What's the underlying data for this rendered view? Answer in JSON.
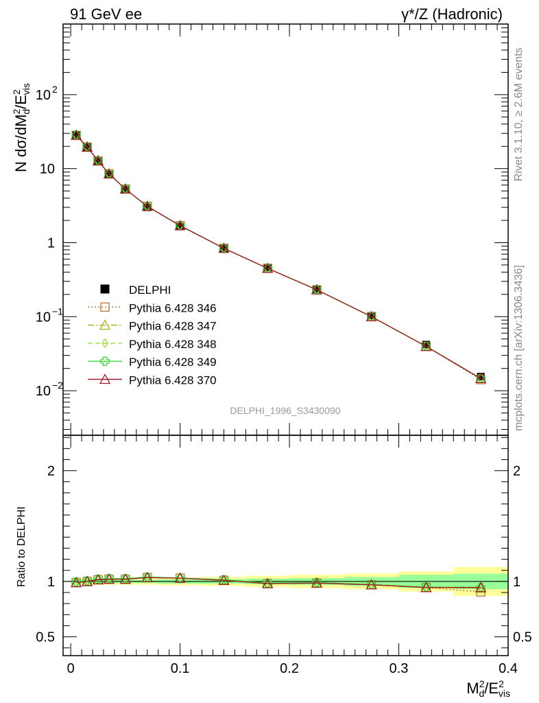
{
  "header": {
    "left": "91 GeV ee",
    "right": "γ*/Z (Hadronic)"
  },
  "side_text": {
    "rivet": "Rivet 3.1.10, ≥ 2.6M events",
    "mcplots": "mcplots.cern.ch [arXiv:1306.3436]"
  },
  "watermark": "DELPHI_1996_S3430090",
  "chart_data": [
    {
      "type": "line",
      "panel": "main",
      "yscale": "log",
      "ylim": [
        0.0025,
        900
      ],
      "xlim": [
        -0.007,
        0.4
      ],
      "ylabel": "N dσ/dM²_d/E²_vis",
      "yticks": [
        {
          "value": 0.01,
          "base": "10",
          "exp": "−2"
        },
        {
          "value": 0.1,
          "base": "10",
          "exp": "−1"
        },
        {
          "value": 1,
          "base": "1",
          "exp": ""
        },
        {
          "value": 10,
          "base": "10",
          "exp": ""
        },
        {
          "value": 100,
          "base": "10",
          "exp": "2"
        }
      ],
      "x": [
        0.005,
        0.015,
        0.025,
        0.035,
        0.05,
        0.07,
        0.1,
        0.14,
        0.18,
        0.225,
        0.275,
        0.325,
        0.375
      ],
      "data": {
        "name": "DELPHI",
        "values": [
          28.5,
          19.5,
          12.5,
          8.3,
          5.2,
          3.0,
          1.65,
          0.83,
          0.46,
          0.235,
          0.103,
          0.042,
          0.0155
        ]
      },
      "legend_placement": "lower-left",
      "series": [
        {
          "name": "Pythia 6.428 346",
          "color": "#b8753a",
          "marker": "square",
          "dash": "2,3",
          "values": [
            28.2,
            19.6,
            12.7,
            8.5,
            5.3,
            3.1,
            1.7,
            0.84,
            0.45,
            0.231,
            0.1,
            0.0397,
            0.0141
          ]
        },
        {
          "name": "Pythia 6.428 347",
          "color": "#a2b21c",
          "marker": "triangle",
          "dash": "9,3,2,3",
          "values": [
            28.3,
            19.6,
            12.8,
            8.5,
            5.3,
            3.1,
            1.7,
            0.84,
            0.45,
            0.231,
            0.1,
            0.0397,
            0.0146
          ]
        },
        {
          "name": "Pythia 6.428 348",
          "color": "#96e03a",
          "marker": "diamond",
          "dash": "7,4",
          "values": [
            28.4,
            19.7,
            12.8,
            8.5,
            5.3,
            3.1,
            1.7,
            0.84,
            0.45,
            0.232,
            0.1,
            0.0399,
            0.0147
          ]
        },
        {
          "name": "Pythia 6.428 349",
          "color": "#33dd33",
          "marker": "cross",
          "dash": "",
          "values": [
            28.4,
            19.7,
            12.8,
            8.5,
            5.3,
            3.1,
            1.7,
            0.84,
            0.45,
            0.232,
            0.1,
            0.0398,
            0.0146
          ]
        },
        {
          "name": "Pythia 6.428 370",
          "color": "#a01c2a",
          "marker": "triangle",
          "dash": "",
          "values": [
            28.3,
            19.6,
            12.8,
            8.5,
            5.3,
            3.1,
            1.7,
            0.84,
            0.45,
            0.231,
            0.1,
            0.0397,
            0.0146
          ]
        }
      ]
    },
    {
      "type": "line",
      "panel": "ratio",
      "ylim": [
        0.33,
        2.32
      ],
      "xlim": [
        -0.007,
        0.4
      ],
      "ylabel": "Ratio to DELPHI",
      "xlabel": "M²_d/E²_vis",
      "yticks": [
        "0.5",
        "1",
        "2"
      ],
      "xticks": [
        "0",
        "0.1",
        "0.2",
        "0.3",
        "0.4"
      ],
      "bins": [
        [
          0,
          0.01
        ],
        [
          0.01,
          0.02
        ],
        [
          0.02,
          0.03
        ],
        [
          0.03,
          0.04
        ],
        [
          0.04,
          0.06
        ],
        [
          0.06,
          0.08
        ],
        [
          0.08,
          0.12
        ],
        [
          0.12,
          0.16
        ],
        [
          0.16,
          0.2
        ],
        [
          0.2,
          0.25
        ],
        [
          0.25,
          0.3
        ],
        [
          0.3,
          0.35
        ],
        [
          0.35,
          0.4
        ]
      ],
      "band_stat": [
        0.015,
        0.015,
        0.015,
        0.015,
        0.015,
        0.015,
        0.02,
        0.02,
        0.025,
        0.03,
        0.04,
        0.06,
        0.07
      ],
      "band_total": [
        0.03,
        0.03,
        0.03,
        0.03,
        0.03,
        0.03,
        0.035,
        0.04,
        0.05,
        0.06,
        0.07,
        0.09,
        0.13
      ],
      "x": [
        0.005,
        0.015,
        0.025,
        0.035,
        0.05,
        0.07,
        0.1,
        0.14,
        0.18,
        0.225,
        0.275,
        0.325,
        0.375
      ],
      "series": [
        {
          "name": "Pythia 6.428 346",
          "values": [
            0.99,
            1.0,
            1.015,
            1.02,
            1.02,
            1.035,
            1.03,
            1.01,
            0.98,
            0.985,
            0.97,
            0.945,
            0.905
          ]
        },
        {
          "name": "Pythia 6.428 347",
          "values": [
            0.99,
            1.0,
            1.015,
            1.02,
            1.02,
            1.035,
            1.03,
            1.01,
            0.98,
            0.985,
            0.97,
            0.945,
            0.94
          ]
        },
        {
          "name": "Pythia 6.428 348",
          "values": [
            0.995,
            1.005,
            1.02,
            1.025,
            1.025,
            1.04,
            1.03,
            1.015,
            0.985,
            0.99,
            0.975,
            0.95,
            0.95
          ]
        },
        {
          "name": "Pythia 6.428 349",
          "values": [
            0.995,
            1.005,
            1.02,
            1.025,
            1.025,
            1.04,
            1.03,
            1.015,
            0.985,
            0.99,
            0.97,
            0.948,
            0.945
          ]
        },
        {
          "name": "Pythia 6.428 370",
          "values": [
            0.99,
            1.0,
            1.015,
            1.02,
            1.02,
            1.035,
            1.03,
            1.01,
            0.98,
            0.985,
            0.97,
            0.945,
            0.945
          ]
        }
      ]
    }
  ]
}
